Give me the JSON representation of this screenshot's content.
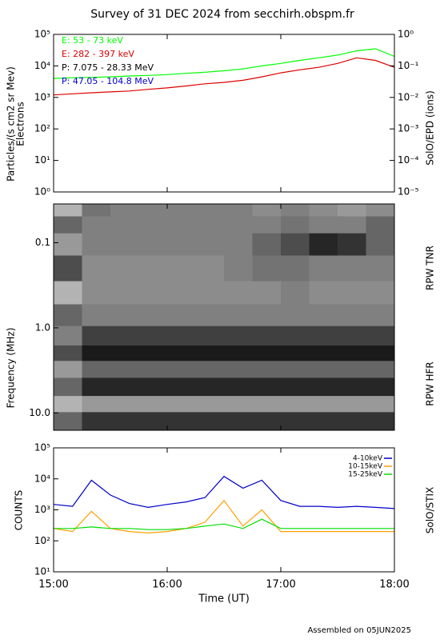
{
  "title": "Survey of 31 DEC 2024 from secchirh.obspm.fr",
  "footer": "Assembled on 05JUN2025",
  "chart_data": [
    {
      "type": "line",
      "log_y": true,
      "ylabel": "Particles/(s cm2 sr Mev)",
      "ylabel_sub": "Electrons",
      "y2label": "SolO/EPD (ions)",
      "xlim": [
        "15:00",
        "18:00"
      ],
      "x": [
        "15:00",
        "15:10",
        "15:20",
        "15:30",
        "15:40",
        "15:50",
        "16:00",
        "16:10",
        "16:20",
        "16:30",
        "16:40",
        "16:50",
        "17:00",
        "17:10",
        "17:20",
        "17:30",
        "17:40",
        "17:50",
        "18:00"
      ],
      "ylim": [
        1,
        100000
      ],
      "yticks": [
        {
          "value": 1,
          "label": "10⁰"
        },
        {
          "value": 10,
          "label": "10¹"
        },
        {
          "value": 100,
          "label": "10²"
        },
        {
          "value": 1000,
          "label": "10³"
        },
        {
          "value": 10000,
          "label": "10⁴"
        },
        {
          "value": 100000,
          "label": "10⁵"
        }
      ],
      "y2lim": [
        1e-05,
        1
      ],
      "y2ticks": [
        {
          "value": 1e-05,
          "label": "10⁻⁵"
        },
        {
          "value": 0.0001,
          "label": "10⁻⁴"
        },
        {
          "value": 0.001,
          "label": "10⁻³"
        },
        {
          "value": 0.01,
          "label": "10⁻²"
        },
        {
          "value": 0.1,
          "label": "10⁻¹"
        },
        {
          "value": 1,
          "label": "10⁰"
        }
      ],
      "series": [
        {
          "name": "E: 53 - 73 keV",
          "color": "#00ff00",
          "values": [
            4000,
            4200,
            4300,
            4500,
            4800,
            5000,
            5300,
            5800,
            6300,
            7000,
            8000,
            10000,
            12000,
            15000,
            18000,
            22000,
            30000,
            35000,
            20000
          ]
        },
        {
          "name": "E: 282 - 397 keV",
          "color": "#dd0000",
          "values": [
            1200,
            1300,
            1400,
            1500,
            1600,
            1800,
            2000,
            2300,
            2700,
            3000,
            3500,
            4500,
            6000,
            7500,
            9000,
            12000,
            18000,
            15000,
            9000
          ]
        },
        {
          "name": "P: 7.075 - 28.33 MeV",
          "color": "#000000",
          "axis": "y2"
        },
        {
          "name": "P: 47.05 - 104.8 MeV",
          "color": "#0000cc",
          "axis": "y2"
        }
      ]
    },
    {
      "type": "heatmap",
      "log_y": true,
      "y_inverted": true,
      "ylabel": "Frequency (MHz)",
      "band_labels": [
        "RPW TNR",
        "RPW HFR"
      ],
      "xlim": [
        "15:00",
        "18:00"
      ],
      "x": [
        "15:00",
        "15:15",
        "15:30",
        "15:45",
        "16:00",
        "16:15",
        "16:30",
        "16:45",
        "17:00",
        "17:15",
        "17:30",
        "17:45"
      ],
      "y": [
        0.04,
        0.06,
        0.1,
        0.2,
        0.4,
        0.7,
        1.3,
        2,
        3,
        5,
        8,
        12
      ],
      "ylim": [
        0.035,
        16
      ],
      "yticks": [
        0.1,
        {
          "value": 1,
          "label": "1.0"
        },
        {
          "value": 10,
          "label": "10.0"
        }
      ],
      "colorscale": [
        "#ffffff",
        "#000000"
      ],
      "z": [
        [
          0.3,
          0.55,
          0.5,
          0.5,
          0.5,
          0.5,
          0.5,
          0.45,
          0.5,
          0.45,
          0.4,
          0.45
        ],
        [
          0.6,
          0.5,
          0.5,
          0.5,
          0.5,
          0.5,
          0.5,
          0.5,
          0.55,
          0.5,
          0.5,
          0.6
        ],
        [
          0.4,
          0.5,
          0.5,
          0.5,
          0.5,
          0.5,
          0.5,
          0.6,
          0.7,
          0.85,
          0.8,
          0.6
        ],
        [
          0.7,
          0.45,
          0.45,
          0.45,
          0.45,
          0.45,
          0.5,
          0.55,
          0.55,
          0.5,
          0.5,
          0.5
        ],
        [
          0.3,
          0.45,
          0.45,
          0.45,
          0.45,
          0.45,
          0.45,
          0.45,
          0.5,
          0.45,
          0.45,
          0.45
        ],
        [
          0.6,
          0.5,
          0.5,
          0.5,
          0.5,
          0.5,
          0.5,
          0.5,
          0.5,
          0.5,
          0.5,
          0.5
        ],
        [
          0.5,
          0.75,
          0.75,
          0.75,
          0.75,
          0.75,
          0.75,
          0.75,
          0.75,
          0.75,
          0.75,
          0.75
        ],
        [
          0.7,
          0.9,
          0.9,
          0.9,
          0.9,
          0.9,
          0.9,
          0.9,
          0.9,
          0.9,
          0.9,
          0.9
        ],
        [
          0.4,
          0.6,
          0.6,
          0.6,
          0.6,
          0.6,
          0.6,
          0.6,
          0.6,
          0.6,
          0.6,
          0.6
        ],
        [
          0.6,
          0.85,
          0.85,
          0.85,
          0.85,
          0.85,
          0.85,
          0.85,
          0.85,
          0.85,
          0.85,
          0.85
        ],
        [
          0.3,
          0.4,
          0.4,
          0.4,
          0.4,
          0.4,
          0.4,
          0.4,
          0.4,
          0.4,
          0.4,
          0.4
        ],
        [
          0.6,
          0.8,
          0.8,
          0.8,
          0.8,
          0.8,
          0.8,
          0.8,
          0.8,
          0.8,
          0.8,
          0.8
        ]
      ]
    },
    {
      "type": "line",
      "log_y": true,
      "ylabel": "COUNTS",
      "y2label": "SolO/STIX",
      "xlabel": "Time (UT)",
      "xlim": [
        "15:00",
        "18:00"
      ],
      "xticks": [
        "15:00",
        "16:00",
        "17:00",
        "18:00"
      ],
      "x": [
        "15:00",
        "15:10",
        "15:20",
        "15:30",
        "15:40",
        "15:50",
        "16:00",
        "16:10",
        "16:20",
        "16:30",
        "16:40",
        "16:50",
        "17:00",
        "17:10",
        "17:20",
        "17:30",
        "17:40",
        "17:50",
        "18:00"
      ],
      "ylim": [
        10,
        100000
      ],
      "yticks": [
        {
          "value": 10,
          "label": "10¹"
        },
        {
          "value": 100,
          "label": "10²"
        },
        {
          "value": 1000,
          "label": "10³"
        },
        {
          "value": 10000,
          "label": "10⁴"
        },
        {
          "value": 100000,
          "label": "10⁵"
        }
      ],
      "series": [
        {
          "name": "4-10keV",
          "color": "#0000cc",
          "values": [
            1500,
            1300,
            9000,
            3000,
            1600,
            1200,
            1500,
            1800,
            2500,
            12000,
            5000,
            9000,
            2000,
            1300,
            1300,
            1200,
            1300,
            1200,
            1100
          ]
        },
        {
          "name": "10-15keV",
          "color": "#ffa000",
          "values": [
            250,
            200,
            900,
            250,
            200,
            180,
            200,
            250,
            400,
            2000,
            300,
            1000,
            200,
            200,
            200,
            200,
            200,
            200,
            200
          ]
        },
        {
          "name": "15-25keV",
          "color": "#00dd00",
          "values": [
            250,
            250,
            280,
            250,
            250,
            230,
            230,
            250,
            300,
            350,
            250,
            500,
            250,
            250,
            250,
            250,
            250,
            250,
            250
          ]
        }
      ]
    }
  ]
}
